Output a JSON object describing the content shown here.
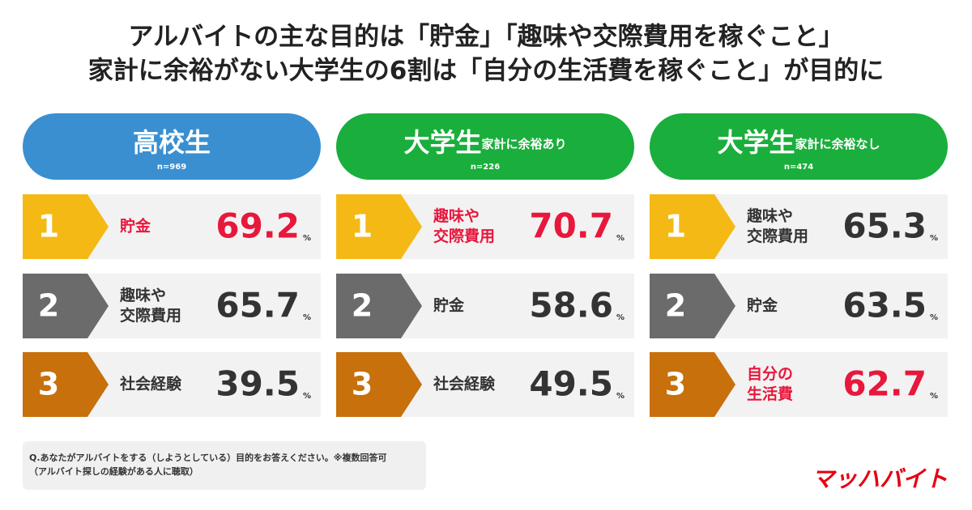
{
  "title": [
    "アルバイトの主な目的は「貯金」「趣味や交際費用を稼ぐこと」",
    "家計に余裕がない大学生の6割は「自分の生活費を稼ぐこと」が目的に"
  ],
  "unit": "%",
  "rank_colors": [
    "#f5b915",
    "#6b6b6b",
    "#c7700c"
  ],
  "highlight_color": "#e8173c",
  "columns": [
    {
      "label": "高校生",
      "n": "n=969",
      "color": "#3a8fd0",
      "items": [
        {
          "rank": 1,
          "lines": [
            "貯金"
          ],
          "value": 69.2,
          "highlight": true
        },
        {
          "rank": 2,
          "lines": [
            "趣味や",
            "交際費用"
          ],
          "value": 65.7,
          "highlight": false
        },
        {
          "rank": 3,
          "lines": [
            "社会経験"
          ],
          "value": 39.5,
          "highlight": false
        }
      ]
    },
    {
      "label": "大学生",
      "sublabel": "家計に余裕あり",
      "n": "n=226",
      "color": "#1aae3c",
      "items": [
        {
          "rank": 1,
          "lines": [
            "趣味や",
            "交際費用"
          ],
          "value": 70.7,
          "highlight": true
        },
        {
          "rank": 2,
          "lines": [
            "貯金"
          ],
          "value": 58.6,
          "highlight": false
        },
        {
          "rank": 3,
          "lines": [
            "社会経験"
          ],
          "value": 49.5,
          "highlight": false
        }
      ]
    },
    {
      "label": "大学生",
      "sublabel": "家計に余裕なし",
      "n": "n=474",
      "color": "#1aae3c",
      "items": [
        {
          "rank": 1,
          "lines": [
            "趣味や",
            "交際費用"
          ],
          "value": 65.3,
          "highlight": false
        },
        {
          "rank": 2,
          "lines": [
            "貯金"
          ],
          "value": 63.5,
          "highlight": false
        },
        {
          "rank": 3,
          "lines": [
            "自分の",
            "生活費"
          ],
          "value": 62.7,
          "highlight": true
        }
      ]
    }
  ],
  "footnote": [
    "Q.あなたがアルバイトをする（しようとしている）目的をお答えください。※複数回答可",
    "（アルバイト探しの経験がある人に聴取）"
  ],
  "logo": "マッハバイト"
}
